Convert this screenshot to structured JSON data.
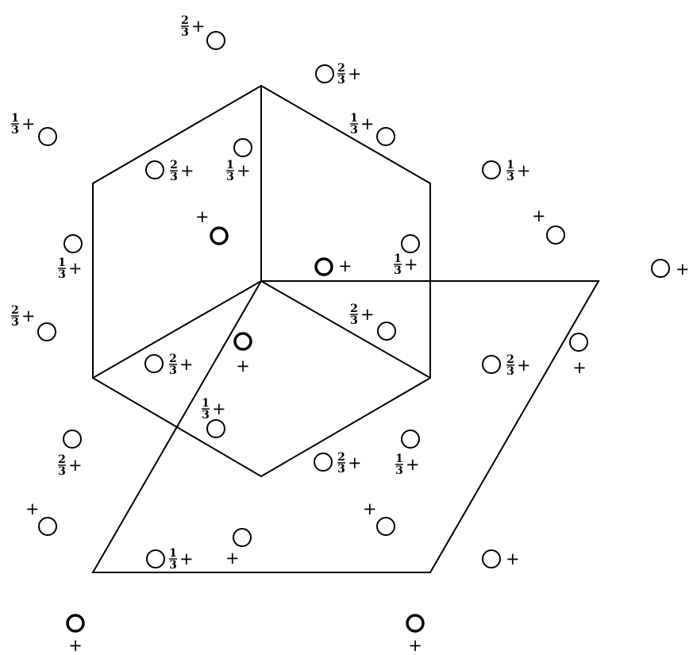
{
  "diagram": {
    "stroke_color": "#000000",
    "background": "#ffffff",
    "height_labels": [
      {
        "name": "two-thirds-plus-top",
        "frac": [
          "2",
          "3"
        ],
        "sign": "+"
      },
      {
        "name": "two-thirds-plus-upper",
        "frac": [
          "2",
          "3"
        ],
        "sign": "+"
      },
      {
        "name": "one-third-plus-upper-left",
        "frac": [
          "1",
          "3"
        ],
        "sign": "+"
      },
      {
        "name": "one-third-plus-upper-center",
        "frac": [
          "1",
          "3"
        ],
        "sign": "+"
      },
      {
        "name": "one-third-plus-cube-left",
        "frac": [
          "1",
          "3"
        ],
        "sign": "+"
      },
      {
        "name": "two-thirds-plus-cube-top",
        "frac": [
          "2",
          "3"
        ],
        "sign": "+"
      },
      {
        "name": "one-third-plus-right-upper",
        "frac": [
          "1",
          "3"
        ],
        "sign": "+"
      },
      {
        "name": "plus-cube-center-left",
        "frac": null,
        "sign": "+"
      },
      {
        "name": "plus-right-upper",
        "frac": null,
        "sign": "+"
      },
      {
        "name": "one-third-plus-left-edge",
        "frac": [
          "1",
          "3"
        ],
        "sign": "+"
      },
      {
        "name": "plus-cube-vertex",
        "frac": null,
        "sign": "+"
      },
      {
        "name": "one-third-plus-cube-right",
        "frac": [
          "1",
          "3"
        ],
        "sign": "+"
      },
      {
        "name": "plus-far-right",
        "frac": null,
        "sign": "+"
      },
      {
        "name": "two-thirds-plus-far-left",
        "frac": [
          "2",
          "3"
        ],
        "sign": "+"
      },
      {
        "name": "two-thirds-plus-cube-lower-right",
        "frac": [
          "2",
          "3"
        ],
        "sign": "+"
      },
      {
        "name": "plus-cube-bottom-inner",
        "frac": null,
        "sign": "+"
      },
      {
        "name": "two-thirds-plus-cube-lower-left",
        "frac": [
          "2",
          "3"
        ],
        "sign": "+"
      },
      {
        "name": "two-thirds-plus-right-mid",
        "frac": [
          "2",
          "3"
        ],
        "sign": "+"
      },
      {
        "name": "plus-right-edge-mid",
        "frac": null,
        "sign": "+"
      },
      {
        "name": "one-third-plus-cube-bottom",
        "frac": [
          "1",
          "3"
        ],
        "sign": "+"
      },
      {
        "name": "two-thirds-plus-lower-left",
        "frac": [
          "2",
          "3"
        ],
        "sign": "+"
      },
      {
        "name": "one-third-plus-lower-center",
        "frac": [
          "1",
          "3"
        ],
        "sign": "+"
      },
      {
        "name": "two-thirds-plus-lower-right",
        "frac": [
          "2",
          "3"
        ],
        "sign": "+"
      },
      {
        "name": "plus-left-lower",
        "frac": null,
        "sign": "+"
      },
      {
        "name": "plus-center-lower",
        "frac": null,
        "sign": "+"
      },
      {
        "name": "plus-bottom-left",
        "frac": null,
        "sign": "+"
      },
      {
        "name": "one-third-plus-bottom-center",
        "frac": [
          "1",
          "3"
        ],
        "sign": "+"
      },
      {
        "name": "plus-bottom-right",
        "frac": null,
        "sign": "+"
      },
      {
        "name": "plus-below-left",
        "frac": null,
        "sign": "+"
      },
      {
        "name": "plus-below-right",
        "frac": null,
        "sign": "+"
      }
    ]
  }
}
